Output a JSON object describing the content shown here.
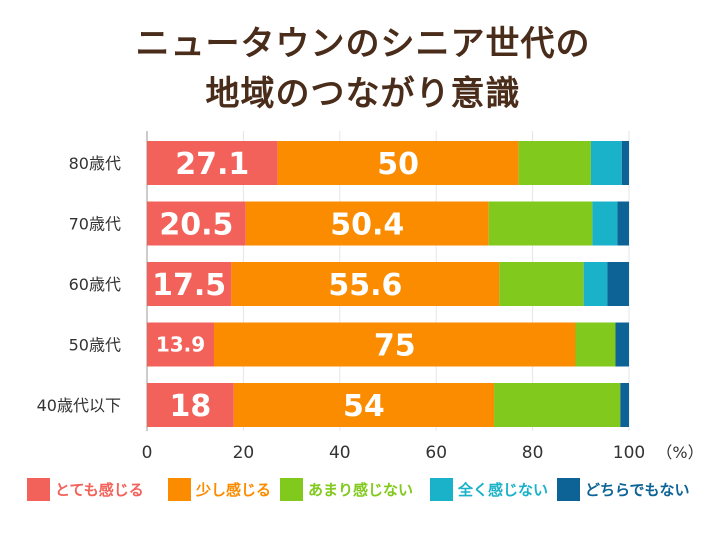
{
  "title_lines": [
    "ニュータウンのシニア世代の",
    "地域のつながり意識"
  ],
  "chart_data": {
    "type": "bar",
    "orientation": "horizontal",
    "stacked": true,
    "categories": [
      "80歳代",
      "70歳代",
      "60歳代",
      "50歳代",
      "40歳代以下"
    ],
    "series": [
      {
        "name": "とても感じる",
        "color": "#f2625a",
        "values": [
          27.1,
          20.5,
          17.5,
          13.9,
          18
        ]
      },
      {
        "name": "少し感じる",
        "color": "#fb8c00",
        "values": [
          50,
          50.4,
          55.6,
          75,
          54
        ]
      },
      {
        "name": "あまり感じない",
        "color": "#82c91e",
        "values": [
          15,
          21.5,
          17.5,
          8.3,
          26.2
        ]
      },
      {
        "name": "全く感じない",
        "color": "#1ab2c8",
        "values": [
          6.4,
          5.2,
          4.9,
          0,
          0
        ]
      },
      {
        "name": "どちらでもない",
        "color": "#0d6396",
        "values": [
          1.5,
          2.4,
          4.5,
          2.8,
          1.8
        ]
      }
    ],
    "data_labels": [
      [
        "27.1",
        "50",
        "",
        "",
        ""
      ],
      [
        "20.5",
        "50.4",
        "",
        "",
        ""
      ],
      [
        "17.5",
        "55.6",
        "",
        "",
        ""
      ],
      [
        "13.9",
        "75",
        "",
        "",
        ""
      ],
      [
        "18",
        "54",
        "",
        "",
        ""
      ]
    ],
    "xlim": [
      0,
      100
    ],
    "xticks": [
      "0",
      "20",
      "40",
      "60",
      "80",
      "100"
    ],
    "unit_label": "（%）",
    "legend_position": "bottom"
  }
}
